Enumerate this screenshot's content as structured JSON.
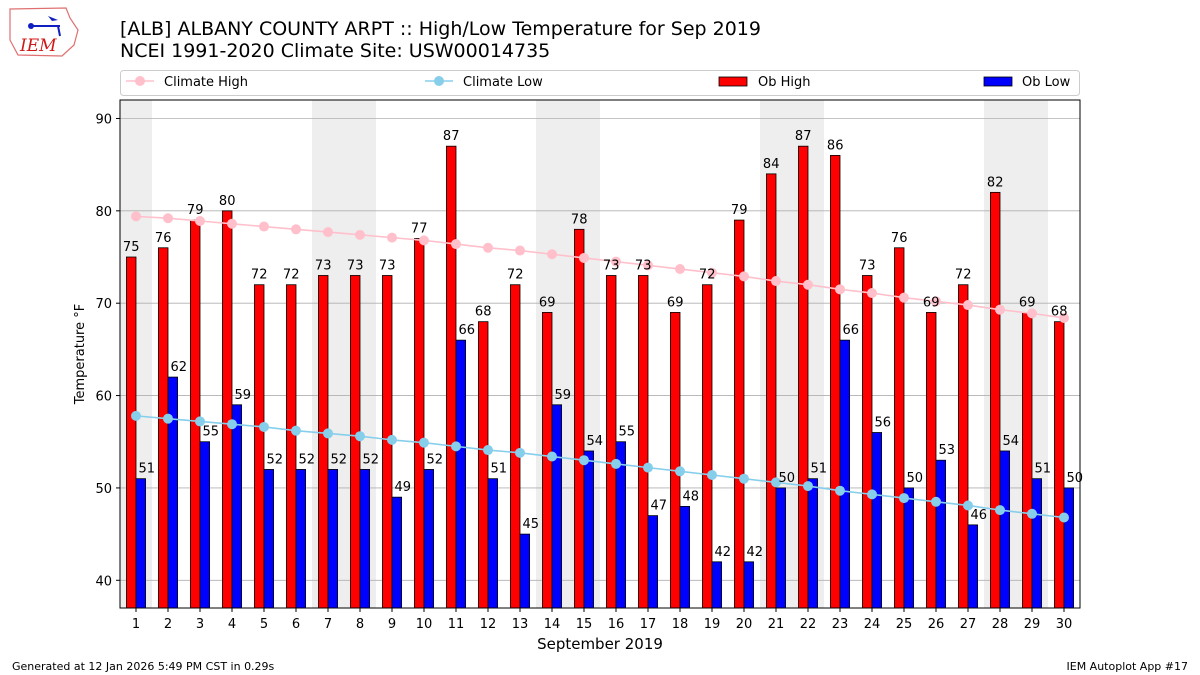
{
  "header": {
    "title_line1": "[ALB] ALBANY COUNTY ARPT :: High/Low Temperature for Sep 2019",
    "title_line2": "NCEI 1991-2020 Climate Site: USW00014735",
    "logo_text": "IEM"
  },
  "footer": {
    "generated": "Generated at 12 Jan 2026 5:49 PM CST in 0.29s",
    "app": "IEM Autoplot App #17"
  },
  "chart_data": {
    "type": "bar",
    "xlabel": "September 2019",
    "ylabel": "Temperature °F",
    "ylim": [
      37,
      92
    ],
    "xlim": [
      0.5,
      30.5
    ],
    "yticks": [
      40,
      50,
      60,
      70,
      80,
      90
    ],
    "grid": true,
    "legend_position": "top",
    "categories": [
      1,
      2,
      3,
      4,
      5,
      6,
      7,
      8,
      9,
      10,
      11,
      12,
      13,
      14,
      15,
      16,
      17,
      18,
      19,
      20,
      21,
      22,
      23,
      24,
      25,
      26,
      27,
      28,
      29,
      30
    ],
    "weekend_days": [
      1,
      7,
      8,
      14,
      15,
      21,
      22,
      28,
      29
    ],
    "series": [
      {
        "name": "Climate High",
        "kind": "line",
        "color": "#ffc0cb",
        "values": [
          79.4,
          79.2,
          78.9,
          78.6,
          78.3,
          78.0,
          77.7,
          77.4,
          77.1,
          76.8,
          76.4,
          76.0,
          75.7,
          75.3,
          74.9,
          74.5,
          74.1,
          73.7,
          73.3,
          72.9,
          72.4,
          72.0,
          71.5,
          71.1,
          70.6,
          70.2,
          69.8,
          69.3,
          68.9,
          68.4
        ]
      },
      {
        "name": "Climate Low",
        "kind": "line",
        "color": "#87ceeb",
        "values": [
          57.8,
          57.5,
          57.2,
          56.9,
          56.6,
          56.2,
          55.9,
          55.6,
          55.2,
          54.9,
          54.5,
          54.1,
          53.8,
          53.4,
          53.0,
          52.6,
          52.2,
          51.8,
          51.4,
          51.0,
          50.6,
          50.2,
          49.7,
          49.3,
          48.9,
          48.5,
          48.1,
          47.6,
          47.2,
          46.8
        ]
      },
      {
        "name": "Ob High",
        "kind": "bar",
        "color": "#ff0000",
        "values": [
          75,
          76,
          79,
          80,
          72,
          72,
          73,
          73,
          73,
          77,
          87,
          68,
          72,
          69,
          78,
          73,
          73,
          69,
          72,
          79,
          84,
          87,
          86,
          73,
          76,
          69,
          72,
          82,
          69,
          68
        ]
      },
      {
        "name": "Ob Low",
        "kind": "bar",
        "color": "#0000ff",
        "values": [
          51,
          62,
          55,
          59,
          52,
          52,
          52,
          52,
          49,
          52,
          66,
          51,
          45,
          59,
          54,
          55,
          47,
          48,
          42,
          42,
          50,
          51,
          66,
          56,
          50,
          53,
          46,
          54,
          51,
          50
        ]
      }
    ]
  }
}
